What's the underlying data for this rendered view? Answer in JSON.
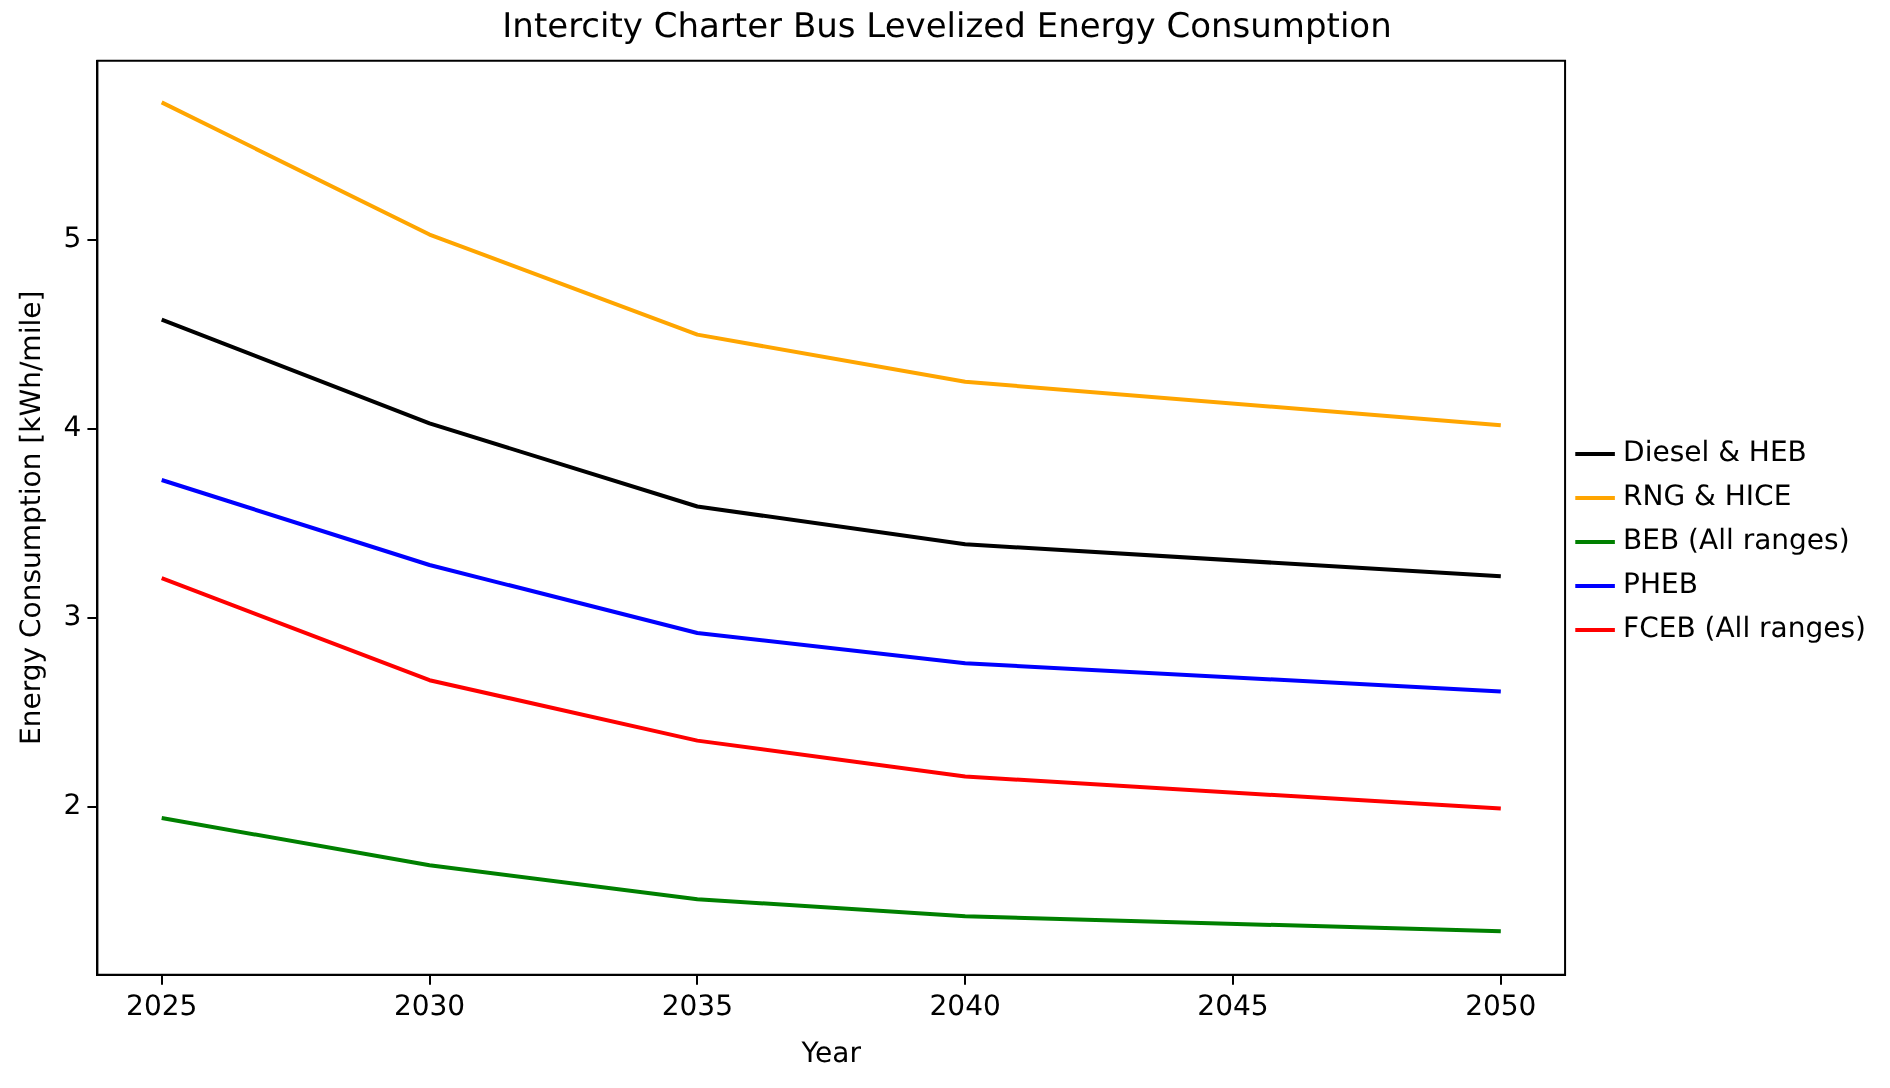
{
  "chart_data": {
    "type": "line",
    "title": "Intercity Charter Bus Levelized Energy Consumption",
    "xlabel": "Year",
    "ylabel": "Energy Consumption [kWh/mile]",
    "x": [
      2025,
      2030,
      2035,
      2040,
      2050
    ],
    "series": [
      {
        "name": "Diesel & HEB",
        "color": "#000000",
        "values": [
          4.58,
          4.03,
          3.59,
          3.39,
          3.22
        ]
      },
      {
        "name": "RNG & HICE",
        "color": "#ffa500",
        "values": [
          5.73,
          5.03,
          4.5,
          4.25,
          4.02
        ]
      },
      {
        "name": "BEB (All ranges)",
        "color": "#008000",
        "values": [
          1.94,
          1.69,
          1.51,
          1.42,
          1.34
        ]
      },
      {
        "name": "PHEB",
        "color": "#0000ff",
        "values": [
          3.73,
          3.28,
          2.92,
          2.76,
          2.61
        ]
      },
      {
        "name": "FCEB (All ranges)",
        "color": "#ff0000",
        "values": [
          3.21,
          2.67,
          2.35,
          2.16,
          1.99
        ]
      }
    ],
    "xlim": [
      2023.8,
      2051.2
    ],
    "xticks": [
      2025,
      2030,
      2035,
      2040,
      2045,
      2050
    ],
    "ylim": [
      1.11,
      5.95
    ],
    "yticks": [
      2,
      3,
      4,
      5
    ],
    "grid": false,
    "legend": "right",
    "marker": "none",
    "line_style": "solid"
  }
}
